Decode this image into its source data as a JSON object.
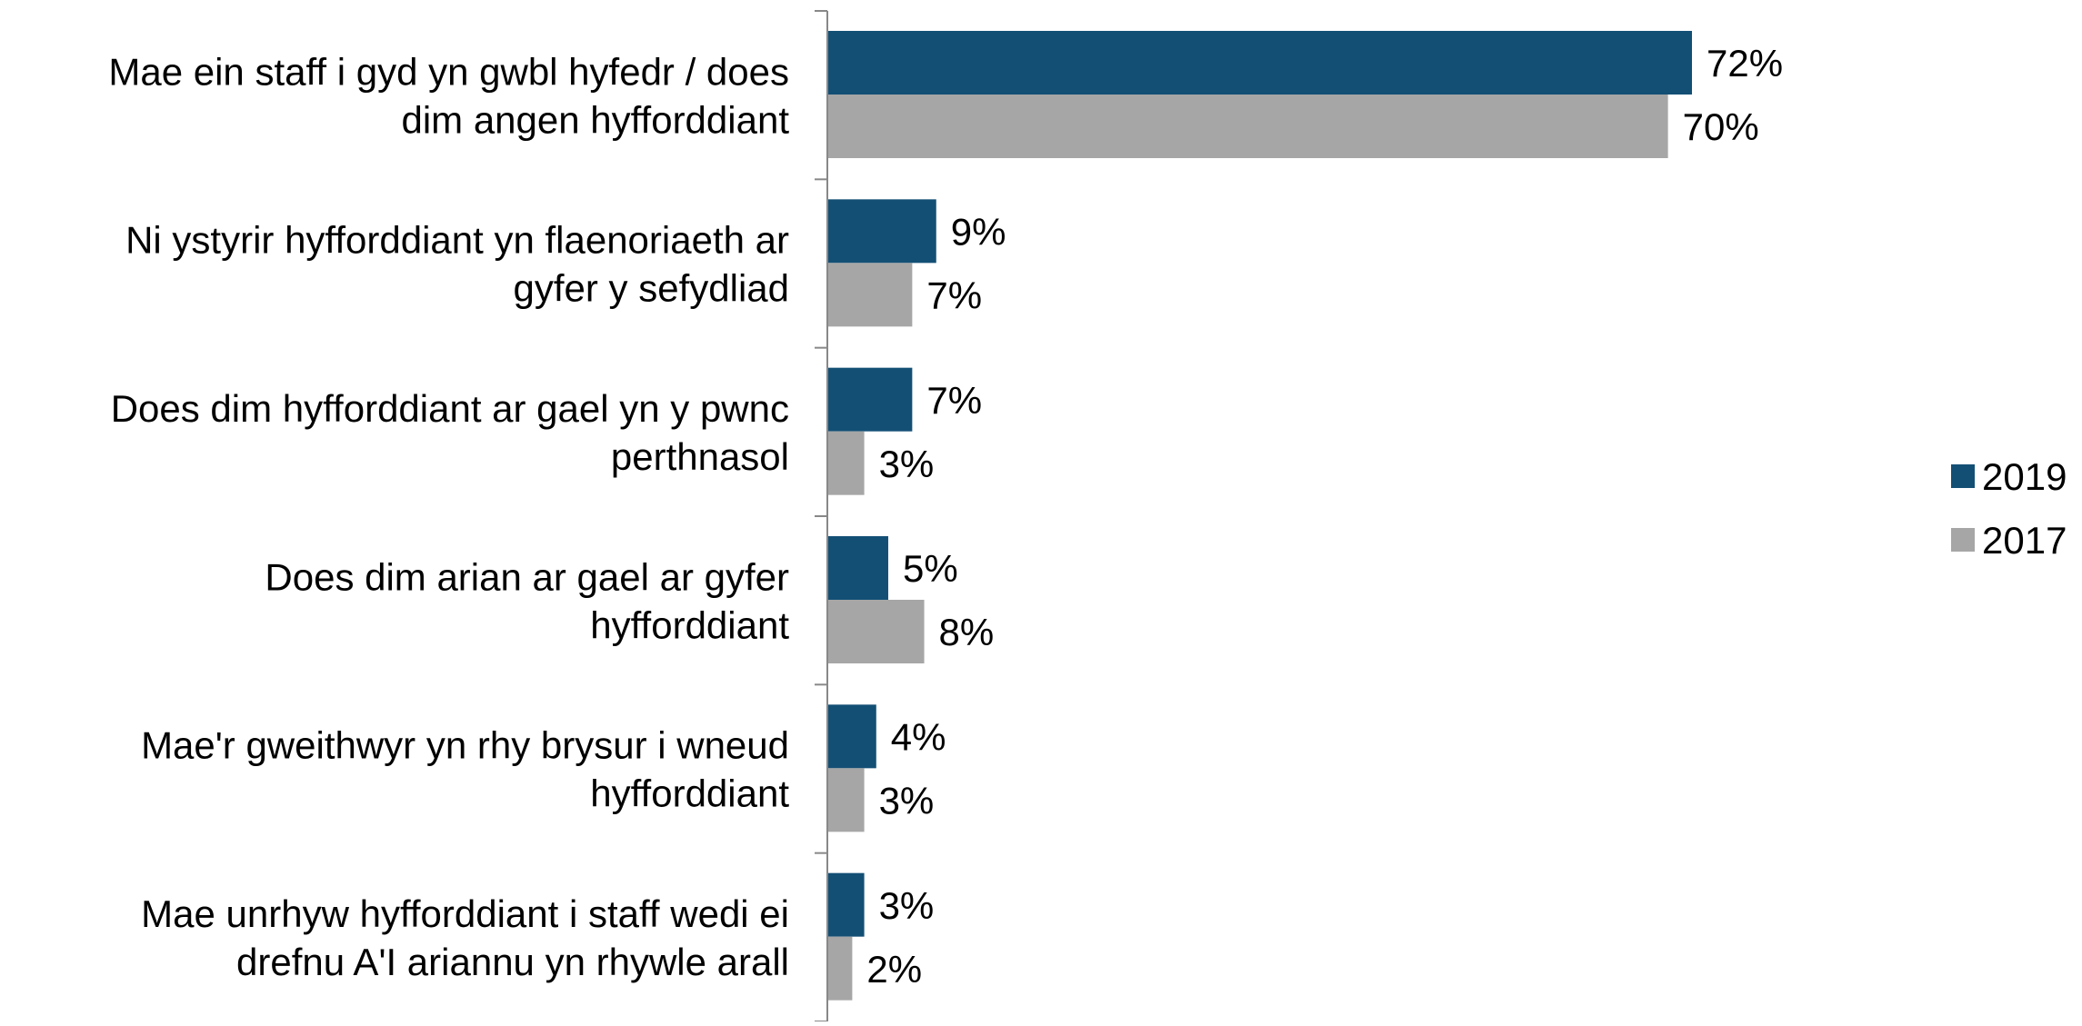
{
  "chart_data": {
    "type": "bar",
    "orientation": "horizontal",
    "categories": [
      [
        "Mae ein staff i gyd yn gwbl hyfedr / does",
        "dim angen hyfforddiant"
      ],
      [
        "Ni ystyrir hyfforddiant yn flaenoriaeth ar",
        "gyfer y sefydliad"
      ],
      [
        "Does dim hyfforddiant ar gael yn y pwnc",
        "perthnasol"
      ],
      [
        "Does dim arian ar gael ar gyfer",
        "hyfforddiant"
      ],
      [
        "Mae'r gweithwyr yn rhy brysur i wneud",
        "hyfforddiant"
      ],
      [
        "Mae unrhyw hyfforddiant i staff wedi ei",
        "drefnu A'I ariannu yn rhywle arall"
      ]
    ],
    "series": [
      {
        "name": "2019",
        "color": "#134f75",
        "values": [
          72,
          9,
          7,
          5,
          4,
          3
        ],
        "labels": [
          "72%",
          "9%",
          "7%",
          "5%",
          "4%",
          "3%"
        ]
      },
      {
        "name": "2017",
        "color": "#a6a6a6",
        "values": [
          70,
          7,
          3,
          8,
          3,
          2
        ],
        "labels": [
          "70%",
          "7%",
          "3%",
          "8%",
          "3%",
          "2%"
        ]
      }
    ],
    "value_unit": "%",
    "xlim": [
      0,
      100
    ],
    "grid": false,
    "legend_position": "right",
    "axis_color": "#888888"
  }
}
